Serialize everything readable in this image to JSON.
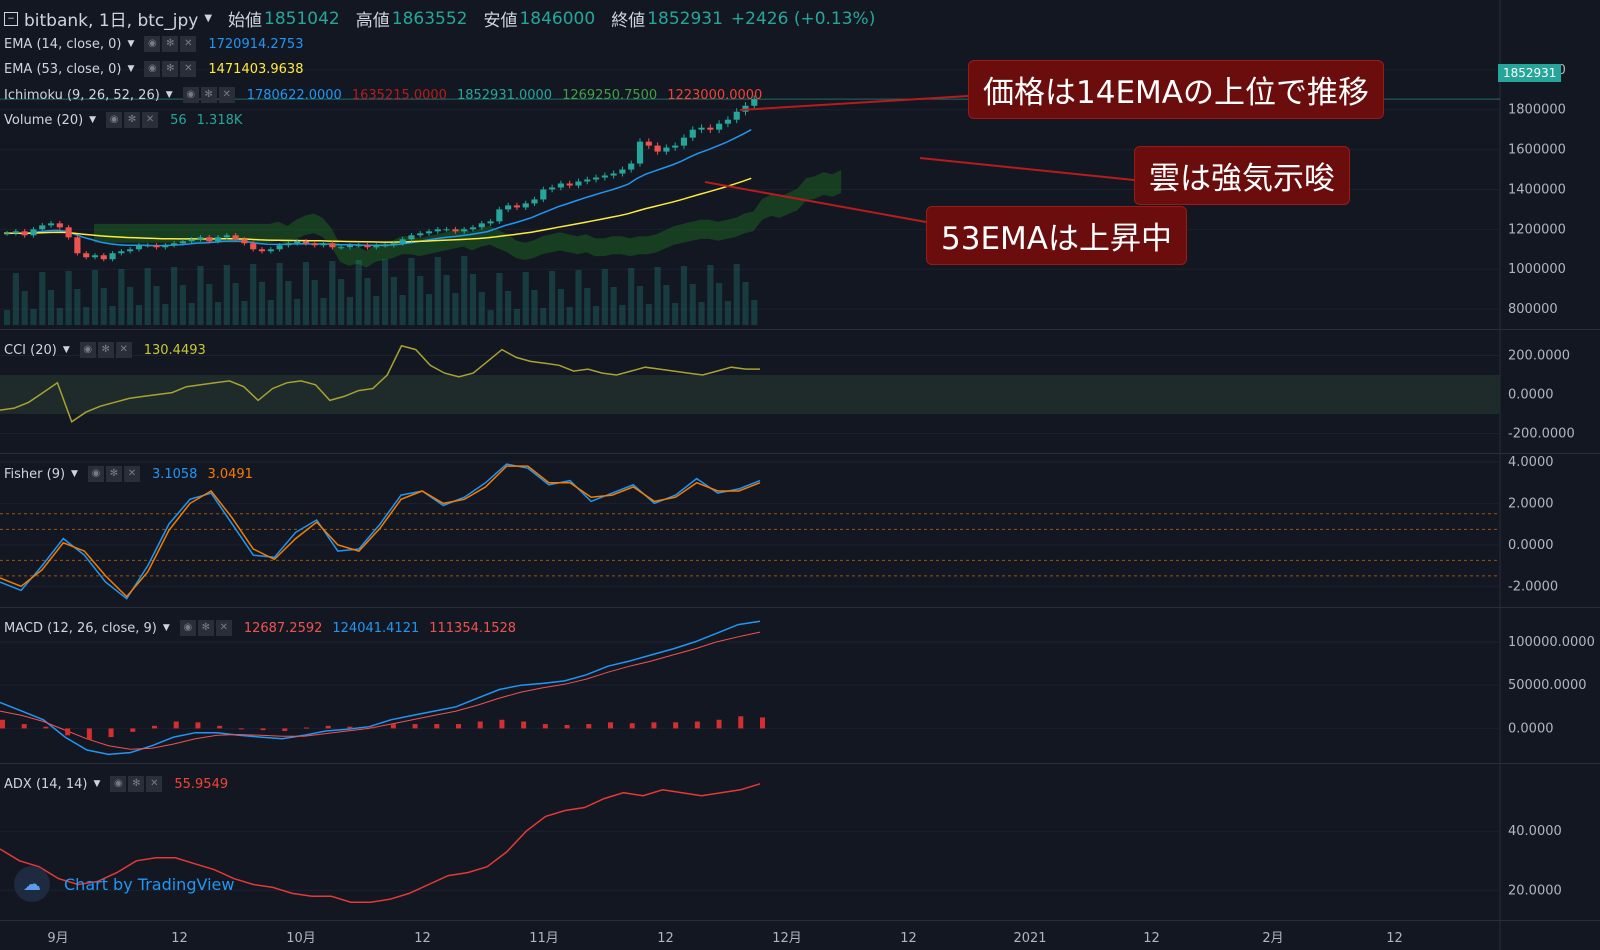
{
  "header": {
    "symbol": "bitbank, 1日, btc_jpy",
    "open_label": "始値",
    "open": "1851042",
    "high_label": "高値",
    "high": "1863552",
    "low_label": "安値",
    "low": "1846000",
    "close_label": "終値",
    "close": "1852931",
    "change": "+2426 (+0.13%)"
  },
  "indicators": {
    "ema14": {
      "title": "EMA (14, close, 0)",
      "value": "1720914.2753",
      "color": "#2196f3"
    },
    "ema53": {
      "title": "EMA (53, close, 0)",
      "value": "1471403.9638",
      "color": "#ffeb3b"
    },
    "ichimoku": {
      "title": "Ichimoku (9, 26, 52, 26)",
      "v1": "1780622.0000",
      "v2": "1635215.0000",
      "v3": "1852931.0000",
      "v4": "1269250.7500",
      "v5": "1223000.0000"
    },
    "volume": {
      "title": "Volume (20)",
      "v1": "56",
      "v2": "1.318K"
    },
    "cci": {
      "title": "CCI (20)",
      "value": "130.4493"
    },
    "fisher": {
      "title": "Fisher (9)",
      "v1": "3.1058",
      "v2": "3.0491"
    },
    "macd": {
      "title": "MACD (12, 26, close, 9)",
      "v1": "12687.2592",
      "v2": "124041.4121",
      "v3": "111354.1528"
    },
    "adx": {
      "title": "ADX (14, 14)",
      "value": "55.9549"
    }
  },
  "price_tag": "1852931",
  "annotations": {
    "a1": "価格は14EMAの上位で推移",
    "a2": "雲は強気示唆",
    "a3": "53EMAは上昇中"
  },
  "watermark": "Chart by TradingView",
  "chart_data": [
    {
      "type": "candlestick",
      "title": "bitbank, 1日, btc_jpy",
      "x": [
        "9月",
        "12",
        "10月",
        "12",
        "11月",
        "12",
        "12月",
        "12",
        "2021",
        "12",
        "2月",
        "12"
      ],
      "y_ticks": [
        800000,
        1000000,
        1200000,
        1400000,
        1600000,
        1800000,
        2000000
      ],
      "y_tick_labels": [
        "800000",
        "1000000",
        "1200000",
        "1400000",
        "1600000",
        "1800000",
        "2000000"
      ],
      "ylim": [
        700000,
        2200000
      ],
      "close_series": [
        1180000,
        1190000,
        1170000,
        1200000,
        1220000,
        1230000,
        1210000,
        1160000,
        1080000,
        1060000,
        1070000,
        1050000,
        1080000,
        1090000,
        1100000,
        1120000,
        1120000,
        1110000,
        1120000,
        1130000,
        1140000,
        1150000,
        1160000,
        1140000,
        1160000,
        1170000,
        1150000,
        1130000,
        1100000,
        1090000,
        1100000,
        1120000,
        1130000,
        1140000,
        1130000,
        1120000,
        1130000,
        1110000,
        1110000,
        1120000,
        1120000,
        1110000,
        1120000,
        1120000,
        1130000,
        1150000,
        1170000,
        1180000,
        1190000,
        1200000,
        1200000,
        1190000,
        1200000,
        1210000,
        1230000,
        1240000,
        1300000,
        1320000,
        1310000,
        1330000,
        1350000,
        1400000,
        1410000,
        1430000,
        1420000,
        1440000,
        1450000,
        1460000,
        1470000,
        1480000,
        1500000,
        1530000,
        1640000,
        1620000,
        1590000,
        1610000,
        1620000,
        1660000,
        1700000,
        1710000,
        1700000,
        1730000,
        1750000,
        1790000,
        1820000,
        1852931
      ],
      "ema14_last": 1720914.2753,
      "ema53_last": 1471403.9638
    },
    {
      "type": "line",
      "title": "CCI (20)",
      "y_ticks": [
        200,
        0,
        -200
      ],
      "y_tick_labels": [
        "200.0000",
        "0.0000",
        "-200.0000"
      ],
      "ylim": [
        -300,
        300
      ],
      "values": [
        -80,
        -70,
        -40,
        10,
        60,
        -140,
        -90,
        -60,
        -40,
        -20,
        -10,
        0,
        10,
        40,
        50,
        60,
        70,
        40,
        -30,
        30,
        60,
        70,
        50,
        -30,
        -10,
        20,
        30,
        100,
        250,
        230,
        150,
        110,
        90,
        110,
        170,
        230,
        190,
        170,
        160,
        150,
        120,
        130,
        110,
        100,
        120,
        140,
        130,
        120,
        110,
        100,
        120,
        140,
        130,
        130
      ],
      "last": 130.4493
    },
    {
      "type": "line",
      "title": "Fisher (9)",
      "y_ticks": [
        4,
        2,
        0,
        -2
      ],
      "y_tick_labels": [
        "4.0000",
        "2.0000",
        "0.0000",
        "-2.0000"
      ],
      "ylim": [
        -3,
        4
      ],
      "series": [
        {
          "name": "Fisher",
          "color": "#2196f3",
          "values": [
            -1.8,
            -2.2,
            -1.0,
            0.3,
            -0.5,
            -1.8,
            -2.6,
            -1.0,
            1.0,
            2.2,
            2.5,
            1.0,
            -0.5,
            -0.6,
            0.6,
            1.2,
            -0.3,
            -0.2,
            1.0,
            2.4,
            2.6,
            1.9,
            2.3,
            3.0,
            3.9,
            3.7,
            2.9,
            3.1,
            2.1,
            2.5,
            2.9,
            2.0,
            2.4,
            3.2,
            2.5,
            2.7,
            3.1
          ]
        },
        {
          "name": "Trigger",
          "color": "#f57c00",
          "values": [
            -1.6,
            -2.0,
            -1.2,
            0.1,
            -0.3,
            -1.5,
            -2.5,
            -1.3,
            0.7,
            2.0,
            2.6,
            1.3,
            -0.2,
            -0.7,
            0.3,
            1.1,
            0.0,
            -0.3,
            0.8,
            2.2,
            2.6,
            2.0,
            2.2,
            2.8,
            3.8,
            3.8,
            3.0,
            3.0,
            2.3,
            2.4,
            2.8,
            2.1,
            2.3,
            3.0,
            2.6,
            2.6,
            3.0
          ]
        }
      ]
    },
    {
      "type": "line",
      "title": "MACD (12, 26, close, 9)",
      "y_ticks": [
        100000,
        50000,
        0
      ],
      "y_tick_labels": [
        "100000.0000",
        "50000.0000",
        "0.0000"
      ],
      "ylim": [
        -40000,
        130000
      ],
      "series": [
        {
          "name": "MACD",
          "color": "#2196f3",
          "values": [
            30000,
            20000,
            10000,
            -10000,
            -25000,
            -30000,
            -28000,
            -20000,
            -10000,
            -5000,
            -5000,
            -8000,
            -10000,
            -12000,
            -8000,
            -3000,
            -1000,
            2000,
            10000,
            15000,
            20000,
            25000,
            35000,
            45000,
            50000,
            52000,
            55000,
            62000,
            72000,
            78000,
            85000,
            92000,
            100000,
            110000,
            120000,
            124041
          ]
        },
        {
          "name": "Signal",
          "color": "#ef5350",
          "values": [
            20000,
            15000,
            8000,
            -2000,
            -12000,
            -20000,
            -24000,
            -23000,
            -18000,
            -12000,
            -8000,
            -7000,
            -8000,
            -9000,
            -9000,
            -6000,
            -3000,
            0,
            5000,
            10000,
            15000,
            20000,
            27000,
            35000,
            42000,
            47000,
            51000,
            57000,
            65000,
            72000,
            78000,
            85000,
            92000,
            100000,
            106000,
            111354
          ]
        }
      ],
      "histogram_last": 12687.2592
    },
    {
      "type": "line",
      "title": "ADX (14, 14)",
      "y_ticks": [
        40,
        20
      ],
      "y_tick_labels": [
        "40.0000",
        "20.0000"
      ],
      "ylim": [
        10,
        60
      ],
      "values": [
        34,
        30,
        28,
        24,
        22,
        23,
        26,
        30,
        31,
        31,
        29,
        27,
        24,
        22,
        21,
        19,
        18,
        18,
        16,
        16,
        17,
        19,
        22,
        25,
        26,
        28,
        33,
        40,
        45,
        47,
        48,
        51,
        53,
        52,
        54,
        53,
        52,
        53,
        54,
        56
      ],
      "last": 55.9549
    }
  ]
}
